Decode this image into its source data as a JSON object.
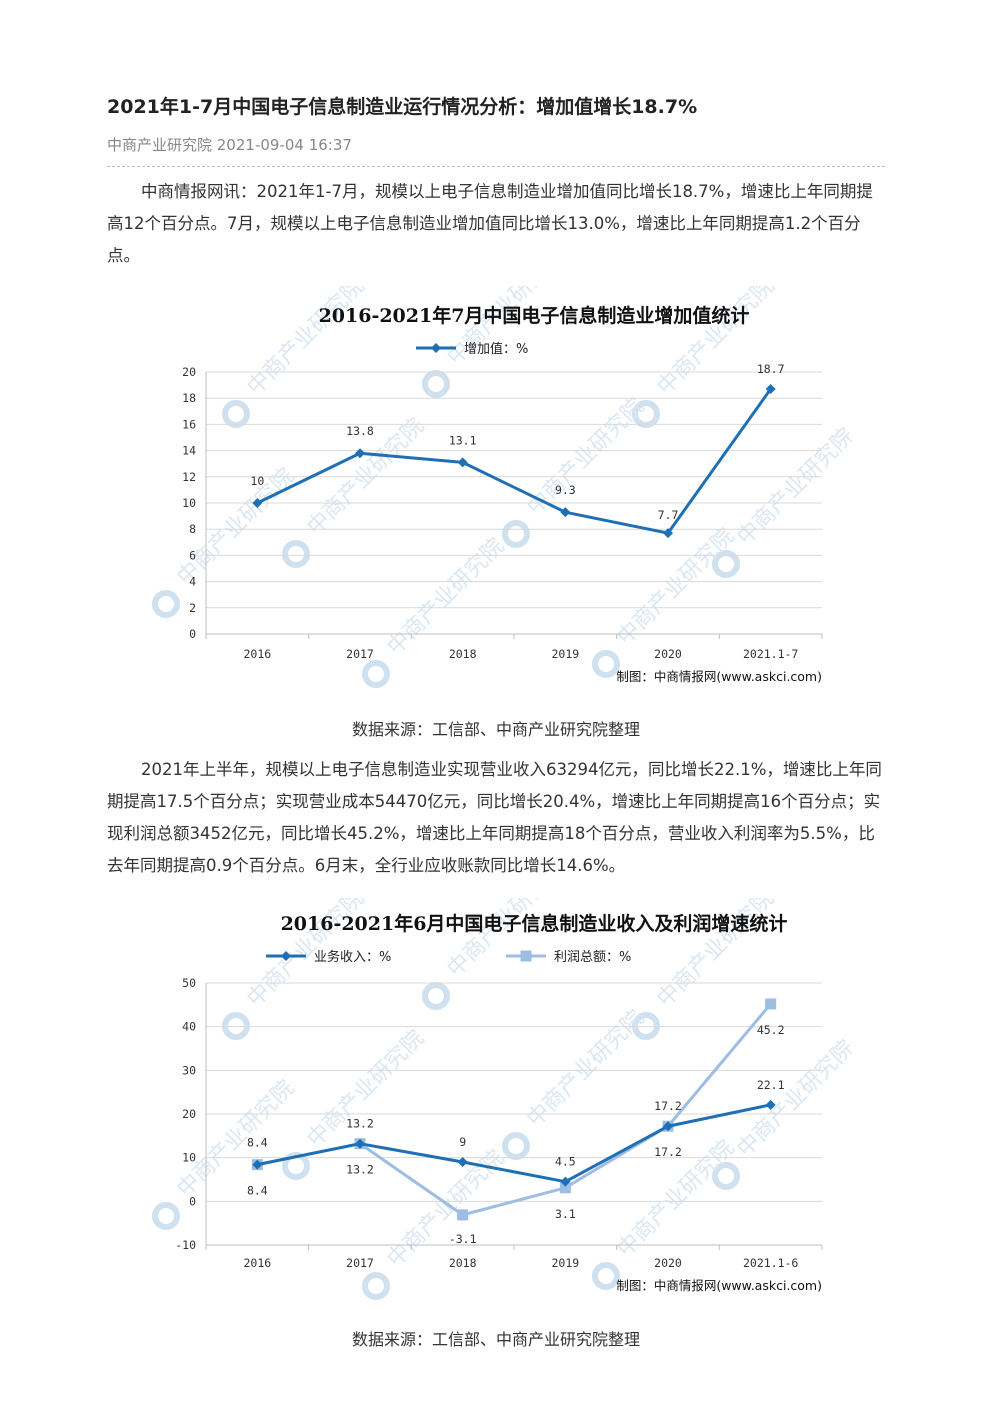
{
  "article": {
    "title": "2021年1-7月中国电子信息制造业运行情况分析：增加值增长18.7%",
    "meta": "中商产业研究院 2021-09-04 16:37",
    "paragraph1": "中商情报网讯：2021年1-7月，规模以上电子信息制造业增加值同比增长18.7%，增速比上年同期提高12个百分点。7月，规模以上电子信息制造业增加值同比增长13.0%，增速比上年同期提高1.2个百分点。",
    "source1": "数据来源：工信部、中商产业研究院整理",
    "paragraph2": "2021年上半年，规模以上电子信息制造业实现营业收入63294亿元，同比增长22.1%，增速比上年同期提高17.5个百分点；实现营业成本54470亿元，同比增长20.4%，增速比上年同期提高16个百分点；实现利润总额3452亿元，同比增长45.2%，增速比上年同期提高18个百分点，营业收入利润率为5.5%，比去年同期提高0.9个百分点。6月末，全行业应收账款同比增长14.6%。",
    "source2": "数据来源：工信部、中商产业研究院整理"
  },
  "chart_data": [
    {
      "type": "line",
      "title": "2016-2021年7月中国电子信息制造业增加值统计",
      "categories": [
        "2016",
        "2017",
        "2018",
        "2019",
        "2020",
        "2021.1-7"
      ],
      "series": [
        {
          "name": "增加值：%",
          "values": [
            10,
            13.8,
            13.1,
            9.3,
            7.7,
            18.7
          ],
          "labels": [
            "10",
            "13.8",
            "13.1",
            "9.3",
            "7.7",
            "18.7"
          ],
          "color": "#1f6fb5",
          "marker": "diamond"
        }
      ],
      "ylim": [
        0,
        20
      ],
      "yticks": [
        "0",
        "2",
        "4",
        "6",
        "8",
        "10",
        "12",
        "14",
        "16",
        "18",
        "20"
      ],
      "grid": true,
      "legend": "top",
      "credit": "制图：中商情报网(www.askci.com)",
      "watermark": "中商产业研究院"
    },
    {
      "type": "line",
      "title": "2016-2021年6月中国电子信息制造业收入及利润增速统计",
      "categories": [
        "2016",
        "2017",
        "2018",
        "2019",
        "2020",
        "2021.1-6"
      ],
      "series": [
        {
          "name": "业务收入：%",
          "values": [
            8.4,
            13.2,
            9,
            4.5,
            17.2,
            22.1
          ],
          "labels": [
            "8.4",
            "13.2",
            "9",
            "4.5",
            "17.2",
            "22.1"
          ],
          "color": "#1f6fb5",
          "marker": "diamond"
        },
        {
          "name": "利润总额：%",
          "values": [
            8.4,
            13.2,
            -3.1,
            3.1,
            17.2,
            45.2
          ],
          "labels": [
            "8.4",
            "13.2",
            "-3.1",
            "3.1",
            "17.2",
            "45.2"
          ],
          "color": "#9dbde2",
          "marker": "square"
        }
      ],
      "ylim": [
        -10,
        50
      ],
      "yticks": [
        "-10",
        "0",
        "10",
        "20",
        "30",
        "40",
        "50"
      ],
      "grid": true,
      "legend": "top",
      "credit": "制图：中商情报网(www.askci.com)",
      "watermark": "中商产业研究院"
    }
  ]
}
